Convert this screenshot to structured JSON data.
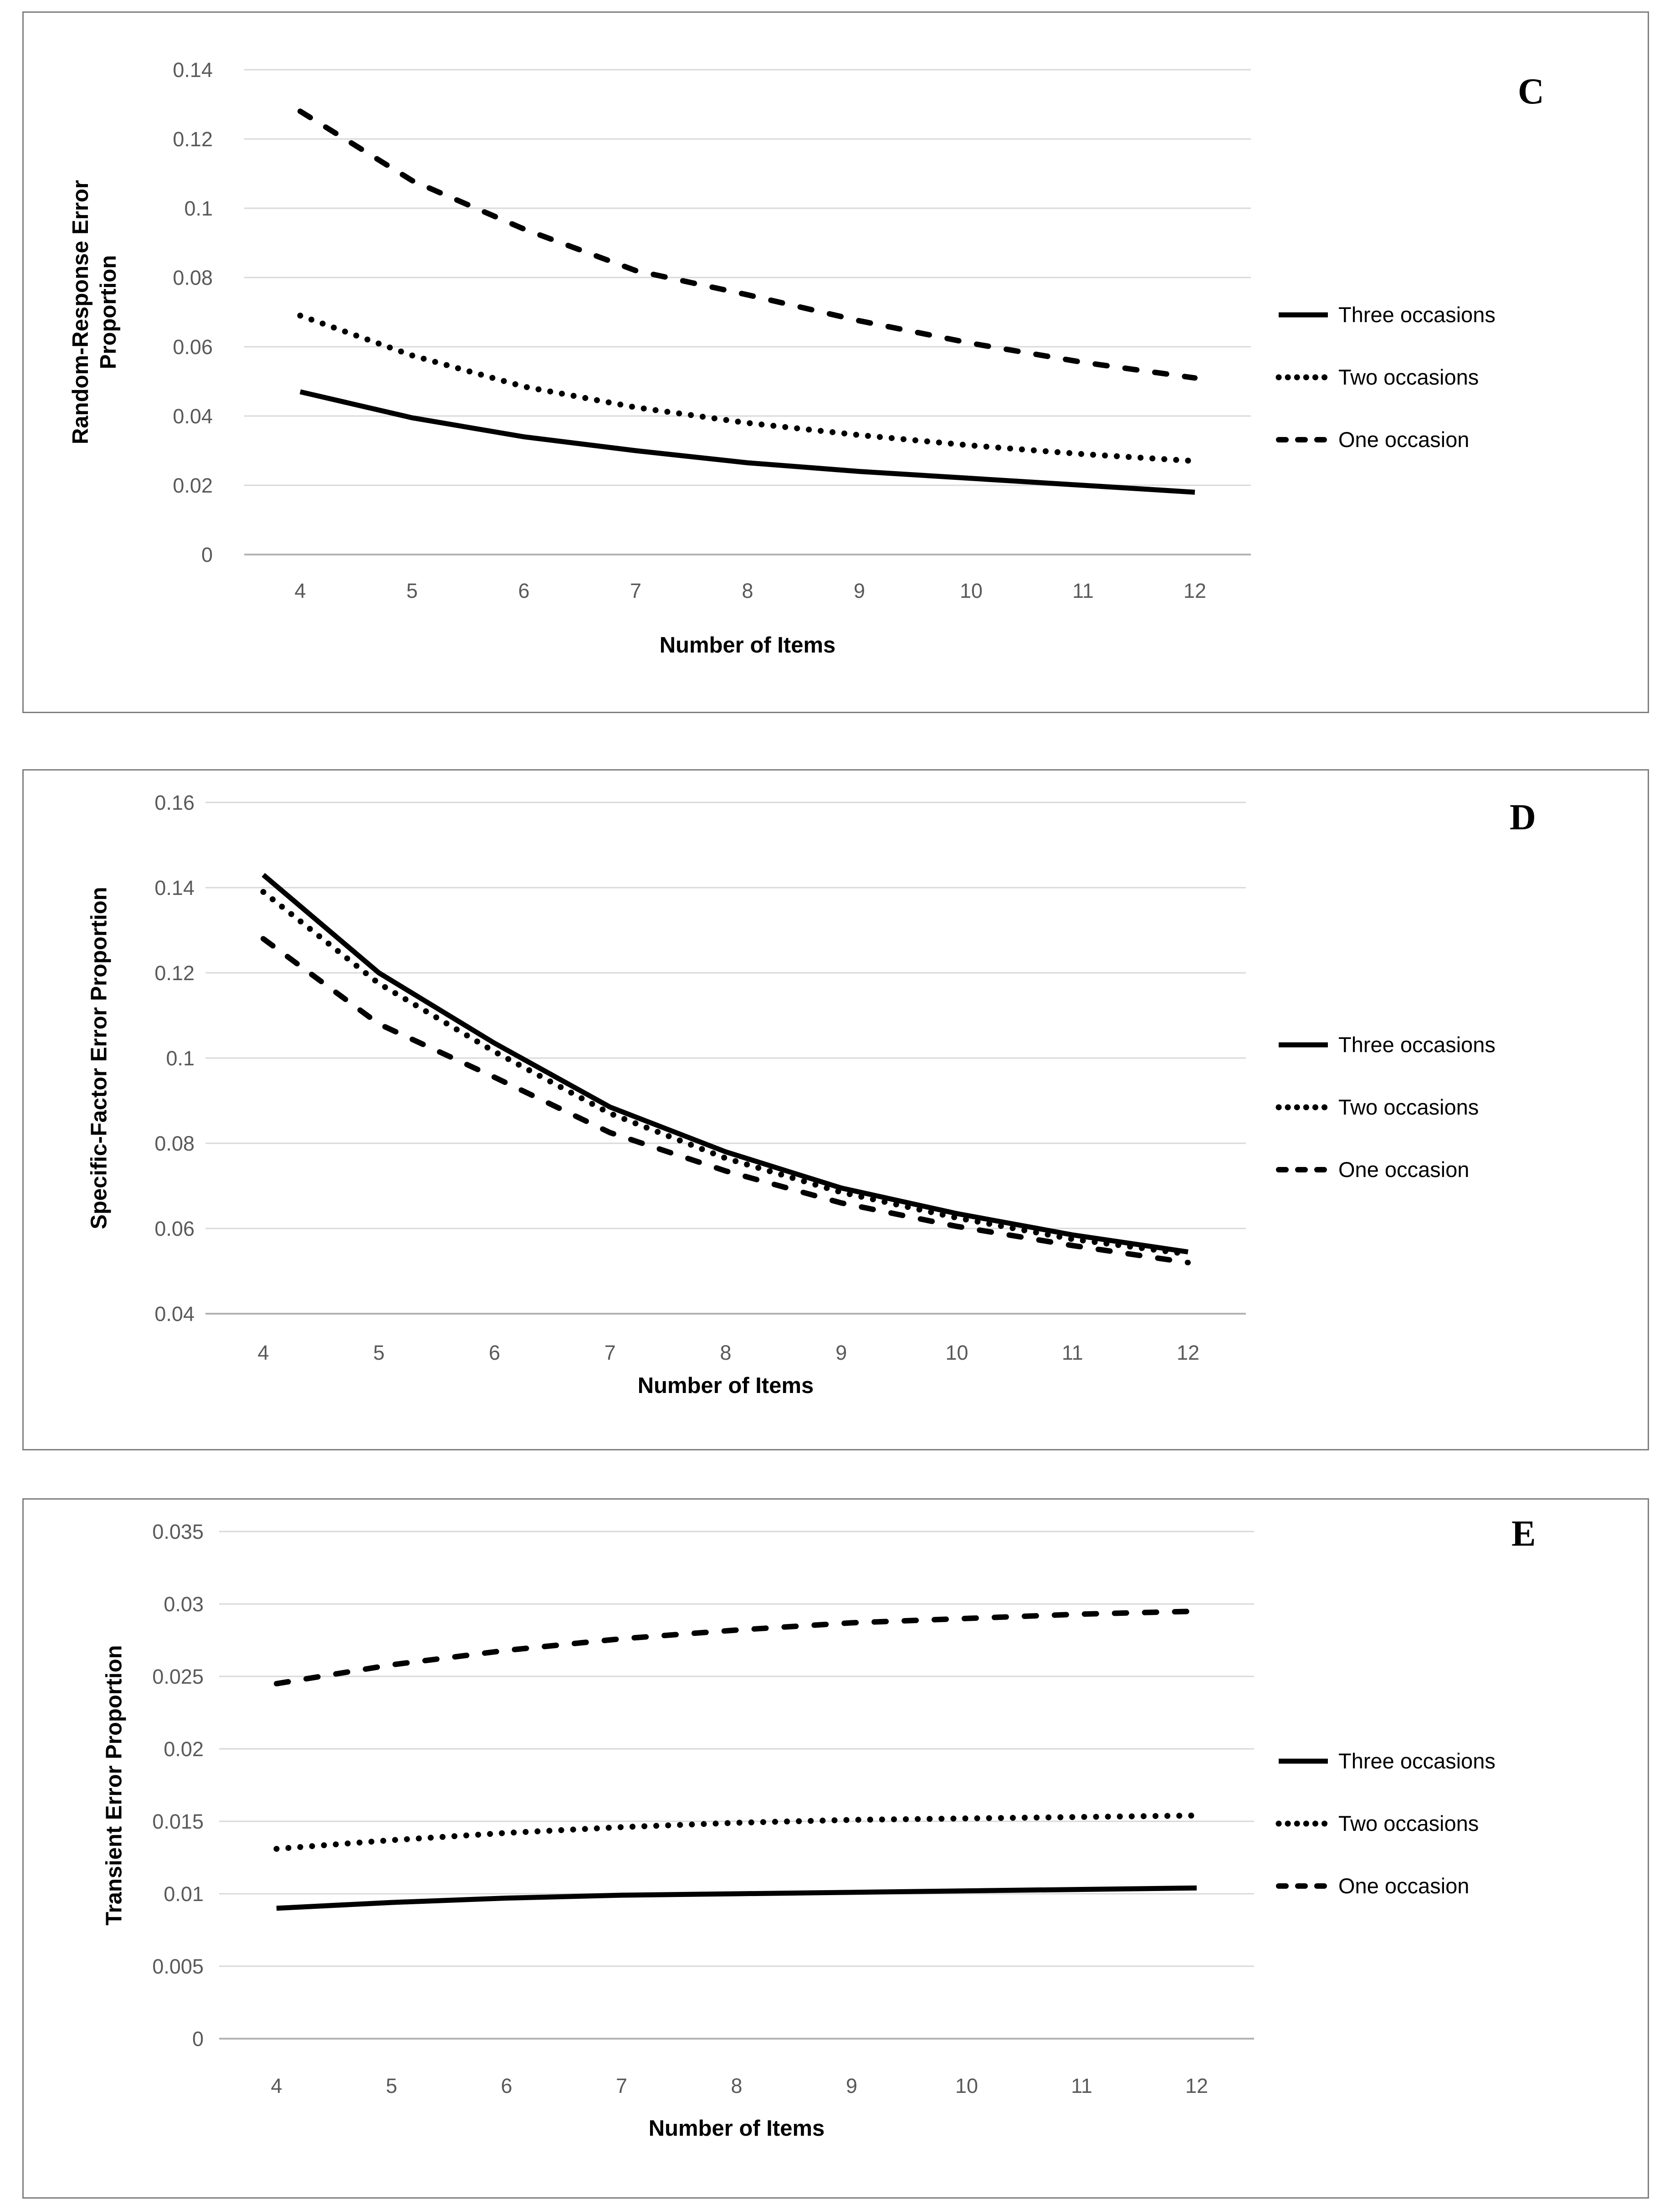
{
  "colors": {
    "series_line": "#000000",
    "gridline": "#d9d9d9",
    "axis_line": "#b3b3b3",
    "tick_text": "#595959",
    "panel_border": "#7f7f7f",
    "background": "#ffffff"
  },
  "xlabel": "Number of Items",
  "legend_items": [
    "Three occasions",
    "Two occasions",
    "One occasion"
  ],
  "chart_data": [
    {
      "id": "C",
      "type": "line",
      "panel_label": "C",
      "title": "",
      "xlabel": "Number of Items",
      "ylabel": "Random-Response Error Proportion",
      "ylabel_lines": [
        "Random-Response Error",
        "Proportion"
      ],
      "x": [
        4,
        5,
        6,
        7,
        8,
        9,
        10,
        11,
        12
      ],
      "ylim": [
        0,
        0.14
      ],
      "ytick_values": [
        0.14,
        0.12,
        0.1,
        0.08,
        0.06,
        0.04,
        0.02,
        0
      ],
      "ytick_labels": [
        "0.14",
        "0.12",
        "0.1",
        "0.08",
        "0.06",
        "0.04",
        "0.02",
        "0"
      ],
      "grid": true,
      "legend_position": "right",
      "series": [
        {
          "name": "Three occasions",
          "style": "solid",
          "values": [
            0.047,
            0.0395,
            0.034,
            0.03,
            0.0265,
            0.024,
            0.022,
            0.02,
            0.018
          ]
        },
        {
          "name": "Two occasions",
          "style": "dotted",
          "values": [
            0.069,
            0.0575,
            0.0485,
            0.0425,
            0.038,
            0.0345,
            0.0315,
            0.029,
            0.027
          ]
        },
        {
          "name": "One occasion",
          "style": "dashed",
          "values": [
            0.128,
            0.108,
            0.094,
            0.082,
            0.075,
            0.0675,
            0.061,
            0.0555,
            0.051
          ]
        }
      ]
    },
    {
      "id": "D",
      "type": "line",
      "panel_label": "D",
      "title": "",
      "xlabel": "Number of Items",
      "ylabel": "Specific-Factor Error Proportion",
      "x": [
        4,
        5,
        6,
        7,
        8,
        9,
        10,
        11,
        12
      ],
      "ylim": [
        0.04,
        0.16
      ],
      "ytick_values": [
        0.16,
        0.14,
        0.12,
        0.1,
        0.08,
        0.06,
        0.04
      ],
      "ytick_labels": [
        "0.16",
        "0.14",
        "0.12",
        "0.1",
        "0.08",
        "0.06",
        "0.04"
      ],
      "grid": true,
      "legend_position": "right",
      "series": [
        {
          "name": "Three occasions",
          "style": "solid",
          "values": [
            0.143,
            0.12,
            0.1035,
            0.0885,
            0.078,
            0.0695,
            0.0635,
            0.0585,
            0.0545
          ]
        },
        {
          "name": "Two occasions",
          "style": "dotted",
          "values": [
            0.139,
            0.1175,
            0.1015,
            0.087,
            0.0765,
            0.0685,
            0.0625,
            0.0575,
            0.054
          ]
        },
        {
          "name": "One occasion",
          "style": "dashed",
          "values": [
            0.128,
            0.108,
            0.0955,
            0.0825,
            0.0735,
            0.066,
            0.0605,
            0.056,
            0.052
          ]
        }
      ]
    },
    {
      "id": "E",
      "type": "line",
      "panel_label": "E",
      "title": "",
      "xlabel": "Number of Items",
      "ylabel": "Transient Error Proportion",
      "x": [
        4,
        5,
        6,
        7,
        8,
        9,
        10,
        11,
        12
      ],
      "ylim": [
        0,
        0.035
      ],
      "ytick_values": [
        0.035,
        0.03,
        0.025,
        0.02,
        0.015,
        0.01,
        0.005,
        0
      ],
      "ytick_labels": [
        "0.035",
        "0.03",
        "0.025",
        "0.02",
        "0.015",
        "0.01",
        "0.005",
        "0"
      ],
      "grid": true,
      "legend_position": "right",
      "series": [
        {
          "name": "Three occasions",
          "style": "solid",
          "values": [
            0.009,
            0.0094,
            0.0097,
            0.0099,
            0.01,
            0.0101,
            0.0102,
            0.0103,
            0.0104
          ]
        },
        {
          "name": "Two occasions",
          "style": "dotted",
          "values": [
            0.0131,
            0.0137,
            0.0142,
            0.0146,
            0.0149,
            0.0151,
            0.0152,
            0.0153,
            0.0154
          ]
        },
        {
          "name": "One occasion",
          "style": "dashed",
          "values": [
            0.0245,
            0.0258,
            0.0268,
            0.0276,
            0.0282,
            0.0287,
            0.029,
            0.0293,
            0.0295
          ]
        }
      ]
    }
  ]
}
